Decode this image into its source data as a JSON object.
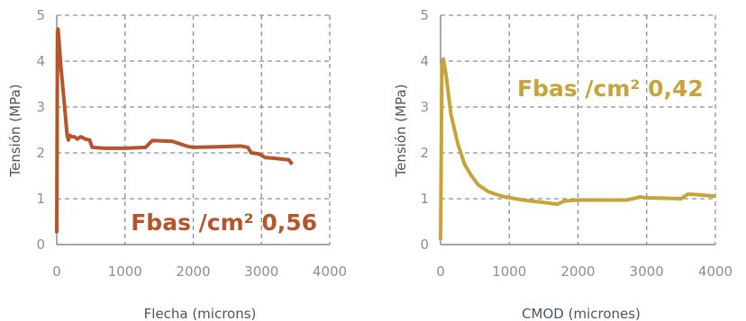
{
  "chart_data": [
    {
      "type": "line",
      "xlabel": "Flecha (microns)",
      "ylabel": "Tensión (MPa)",
      "xlim": [
        0,
        4000
      ],
      "ylim": [
        0,
        5
      ],
      "xticks": [
        "0",
        "1000",
        "2000",
        "3000",
        "4000"
      ],
      "yticks": [
        "0",
        "1",
        "2",
        "3",
        "4",
        "5"
      ],
      "grid": true,
      "color": "#B5552B",
      "annotation": "Fbas /cm² 0,56",
      "series": [
        {
          "x": [
            0,
            10,
            20,
            60,
            110,
            150,
            170,
            190,
            220,
            260,
            300,
            350,
            420,
            480,
            520,
            700,
            1000,
            1300,
            1400,
            1700,
            1900,
            2000,
            2300,
            2700,
            2800,
            2850,
            2950,
            3000,
            3050,
            3200,
            3400,
            3450
          ],
          "y": [
            0.25,
            4.65,
            4.7,
            3.9,
            3.1,
            2.4,
            2.28,
            2.38,
            2.35,
            2.35,
            2.3,
            2.35,
            2.3,
            2.28,
            2.12,
            2.1,
            2.1,
            2.12,
            2.27,
            2.25,
            2.15,
            2.12,
            2.13,
            2.15,
            2.12,
            2.0,
            1.98,
            1.95,
            1.9,
            1.88,
            1.85,
            1.75
          ]
        }
      ]
    },
    {
      "type": "line",
      "xlabel": "CMOD (micrones)",
      "ylabel": "Tensión (MPa)",
      "xlim": [
        0,
        4000
      ],
      "ylim": [
        0,
        5
      ],
      "xticks": [
        "0",
        "1000",
        "2000",
        "3000",
        "4000"
      ],
      "yticks": [
        "0",
        "1",
        "2",
        "3",
        "4",
        "5"
      ],
      "grid": true,
      "color": "#C7A43A",
      "annotation": "Fbas /cm² 0,42",
      "series": [
        {
          "x": [
            0,
            20,
            40,
            80,
            150,
            250,
            350,
            450,
            550,
            700,
            900,
            1200,
            1500,
            1700,
            1800,
            2000,
            2500,
            2700,
            2800,
            2900,
            3000,
            3300,
            3500,
            3600,
            3800,
            4000
          ],
          "y": [
            0.1,
            3.9,
            4.05,
            3.7,
            2.85,
            2.2,
            1.75,
            1.5,
            1.3,
            1.15,
            1.05,
            0.97,
            0.92,
            0.88,
            0.95,
            0.97,
            0.97,
            0.97,
            1.0,
            1.04,
            1.02,
            1.01,
            1.0,
            1.1,
            1.08,
            1.05
          ]
        }
      ]
    }
  ]
}
